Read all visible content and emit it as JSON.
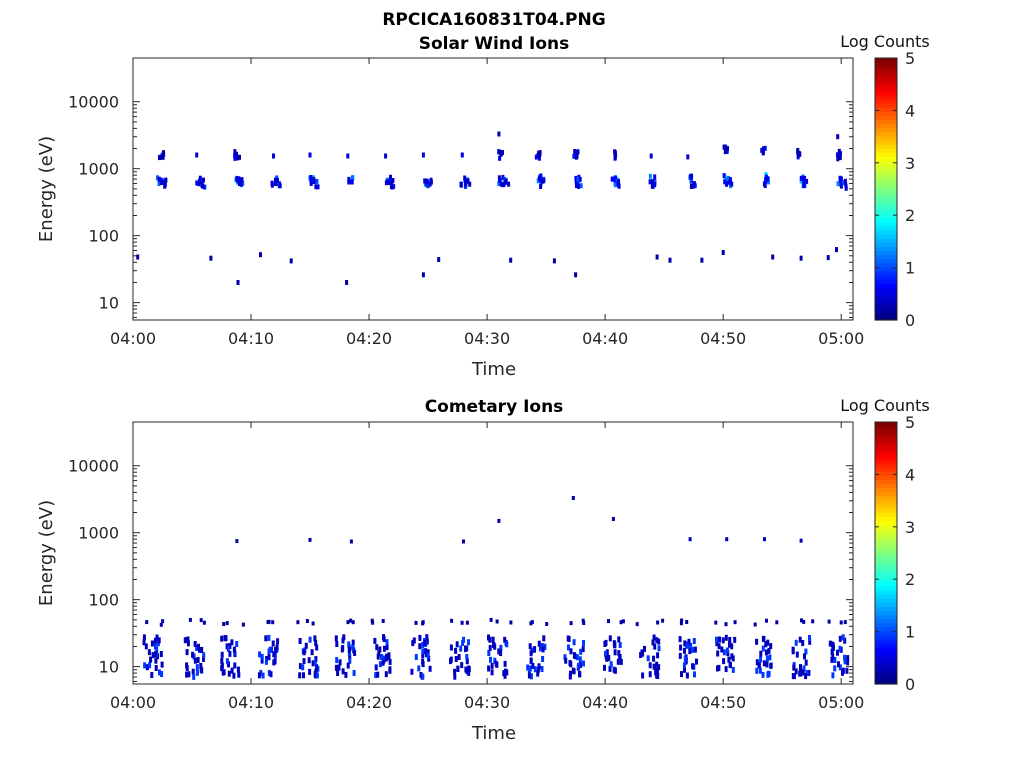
{
  "figure_title": "RPCICA160831T04.PNG",
  "chart_data": [
    {
      "type": "heatmap",
      "title": "Solar Wind Ions",
      "xlabel": "Time",
      "ylabel": "Energy (eV)",
      "x_ticks": [
        "04:00",
        "04:10",
        "04:20",
        "04:30",
        "04:40",
        "04:50",
        "05:00"
      ],
      "y_ticks": [
        "10",
        "100",
        "1000",
        "10000"
      ],
      "y_scale": "log",
      "ylim": [
        5.5,
        45000
      ],
      "xlim_minutes": [
        0,
        61
      ],
      "colorbar": {
        "label": "Log Counts",
        "ticks": [
          "0",
          "1",
          "2",
          "3",
          "4",
          "5"
        ],
        "range": [
          0,
          5
        ],
        "colormap": "jet"
      },
      "grid": false,
      "description": "Two periodic bands around 650 eV and 1600 eV every ~3.2 min",
      "points": [
        [
          2.3,
          650,
          1.1
        ],
        [
          2.6,
          620,
          0.9
        ],
        [
          2.4,
          1550,
          0.6
        ],
        [
          5.6,
          650,
          1.1
        ],
        [
          5.9,
          600,
          0.8
        ],
        [
          5.4,
          1600,
          0.5
        ],
        [
          8.8,
          680,
          1.3
        ],
        [
          9.1,
          620,
          1.0
        ],
        [
          8.8,
          1600,
          0.6
        ],
        [
          12.0,
          650,
          1.1
        ],
        [
          12.3,
          600,
          0.9
        ],
        [
          11.9,
          1550,
          0.5
        ],
        [
          15.2,
          650,
          1.3
        ],
        [
          15.5,
          610,
          1.0
        ],
        [
          15.0,
          1600,
          0.5
        ],
        [
          18.4,
          650,
          1.2
        ],
        [
          18.2,
          1550,
          0.5
        ],
        [
          21.6,
          650,
          1.1
        ],
        [
          21.9,
          590,
          0.8
        ],
        [
          21.4,
          1550,
          0.4
        ],
        [
          24.8,
          650,
          1.2
        ],
        [
          25.1,
          600,
          0.9
        ],
        [
          24.6,
          1600,
          0.5
        ],
        [
          28.0,
          650,
          1.2
        ],
        [
          28.3,
          600,
          0.9
        ],
        [
          27.9,
          1600,
          0.5
        ],
        [
          31.2,
          650,
          1.1
        ],
        [
          31.6,
          660,
          0.9
        ],
        [
          31.1,
          1600,
          0.6
        ],
        [
          34.4,
          680,
          1.3
        ],
        [
          34.6,
          610,
          1.0
        ],
        [
          34.3,
          1600,
          0.6
        ],
        [
          37.6,
          680,
          1.5
        ],
        [
          37.8,
          620,
          1.1
        ],
        [
          37.5,
          1700,
          0.7
        ],
        [
          40.8,
          680,
          1.6
        ],
        [
          41.0,
          620,
          1.2
        ],
        [
          40.7,
          1600,
          0.6
        ],
        [
          44.0,
          680,
          1.3
        ],
        [
          44.2,
          620,
          1.0
        ],
        [
          43.9,
          1550,
          0.5
        ],
        [
          47.2,
          680,
          1.2
        ],
        [
          47.5,
          610,
          0.9
        ],
        [
          47.0,
          1500,
          0.4
        ],
        [
          50.3,
          720,
          1.6
        ],
        [
          50.5,
          640,
          1.2
        ],
        [
          50.2,
          1900,
          0.7
        ],
        [
          53.5,
          720,
          1.7
        ],
        [
          53.7,
          640,
          1.2
        ],
        [
          53.4,
          1850,
          0.7
        ],
        [
          56.7,
          700,
          1.5
        ],
        [
          56.9,
          620,
          1.1
        ],
        [
          56.5,
          1700,
          0.6
        ],
        [
          59.9,
          650,
          1.3
        ],
        [
          60.2,
          580,
          1.0
        ],
        [
          59.8,
          1600,
          0.6
        ],
        [
          0.4,
          48,
          0.2
        ],
        [
          6.6,
          46,
          0.2
        ],
        [
          8.9,
          20,
          0.2
        ],
        [
          10.8,
          52,
          0.2
        ],
        [
          13.4,
          42,
          0.2
        ],
        [
          18.1,
          20,
          0.2
        ],
        [
          24.6,
          26,
          0.2
        ],
        [
          25.9,
          44,
          0.2
        ],
        [
          32.0,
          43,
          0.2
        ],
        [
          35.7,
          42,
          0.2
        ],
        [
          37.5,
          26,
          0.2
        ],
        [
          44.4,
          48,
          0.2
        ],
        [
          45.5,
          43,
          0.2
        ],
        [
          48.2,
          43,
          0.2
        ],
        [
          50.0,
          56,
          0.2
        ],
        [
          54.2,
          48,
          0.2
        ],
        [
          56.6,
          46,
          0.2
        ],
        [
          58.9,
          47,
          0.2
        ],
        [
          59.6,
          62,
          0.2
        ],
        [
          31.0,
          3300,
          0.2
        ],
        [
          59.7,
          3000,
          0.2
        ]
      ]
    },
    {
      "type": "heatmap",
      "title": "Cometary Ions",
      "xlabel": "Time",
      "ylabel": "Energy (eV)",
      "x_ticks": [
        "04:00",
        "04:10",
        "04:20",
        "04:30",
        "04:40",
        "04:50",
        "05:00"
      ],
      "y_ticks": [
        "10",
        "100",
        "1000",
        "10000"
      ],
      "y_scale": "log",
      "ylim": [
        5.5,
        45000
      ],
      "xlim_minutes": [
        0,
        61
      ],
      "colorbar": {
        "label": "Log Counts",
        "ticks": [
          "0",
          "1",
          "2",
          "3",
          "4",
          "5"
        ],
        "range": [
          0,
          5
        ],
        "colormap": "jet"
      },
      "grid": false,
      "description": "Periodic bursts around 12-30 eV every ~3.2 min",
      "clusters_minutes": [
        1.7,
        5.2,
        8.3,
        11.5,
        14.9,
        18.0,
        21.2,
        24.4,
        27.7,
        30.9,
        34.2,
        37.4,
        40.6,
        43.8,
        47.0,
        50.2,
        53.4,
        56.6,
        59.8
      ],
      "sparse_points": [
        [
          8.8,
          750,
          0.2
        ],
        [
          15.0,
          780,
          0.2
        ],
        [
          18.5,
          740,
          0.2
        ],
        [
          28.0,
          740,
          0.2
        ],
        [
          31.0,
          1500,
          0.2
        ],
        [
          37.3,
          3300,
          0.2
        ],
        [
          40.7,
          1600,
          0.2
        ],
        [
          47.2,
          800,
          0.3
        ],
        [
          50.3,
          800,
          0.3
        ],
        [
          53.5,
          800,
          0.3
        ],
        [
          56.6,
          760,
          0.3
        ]
      ]
    }
  ]
}
